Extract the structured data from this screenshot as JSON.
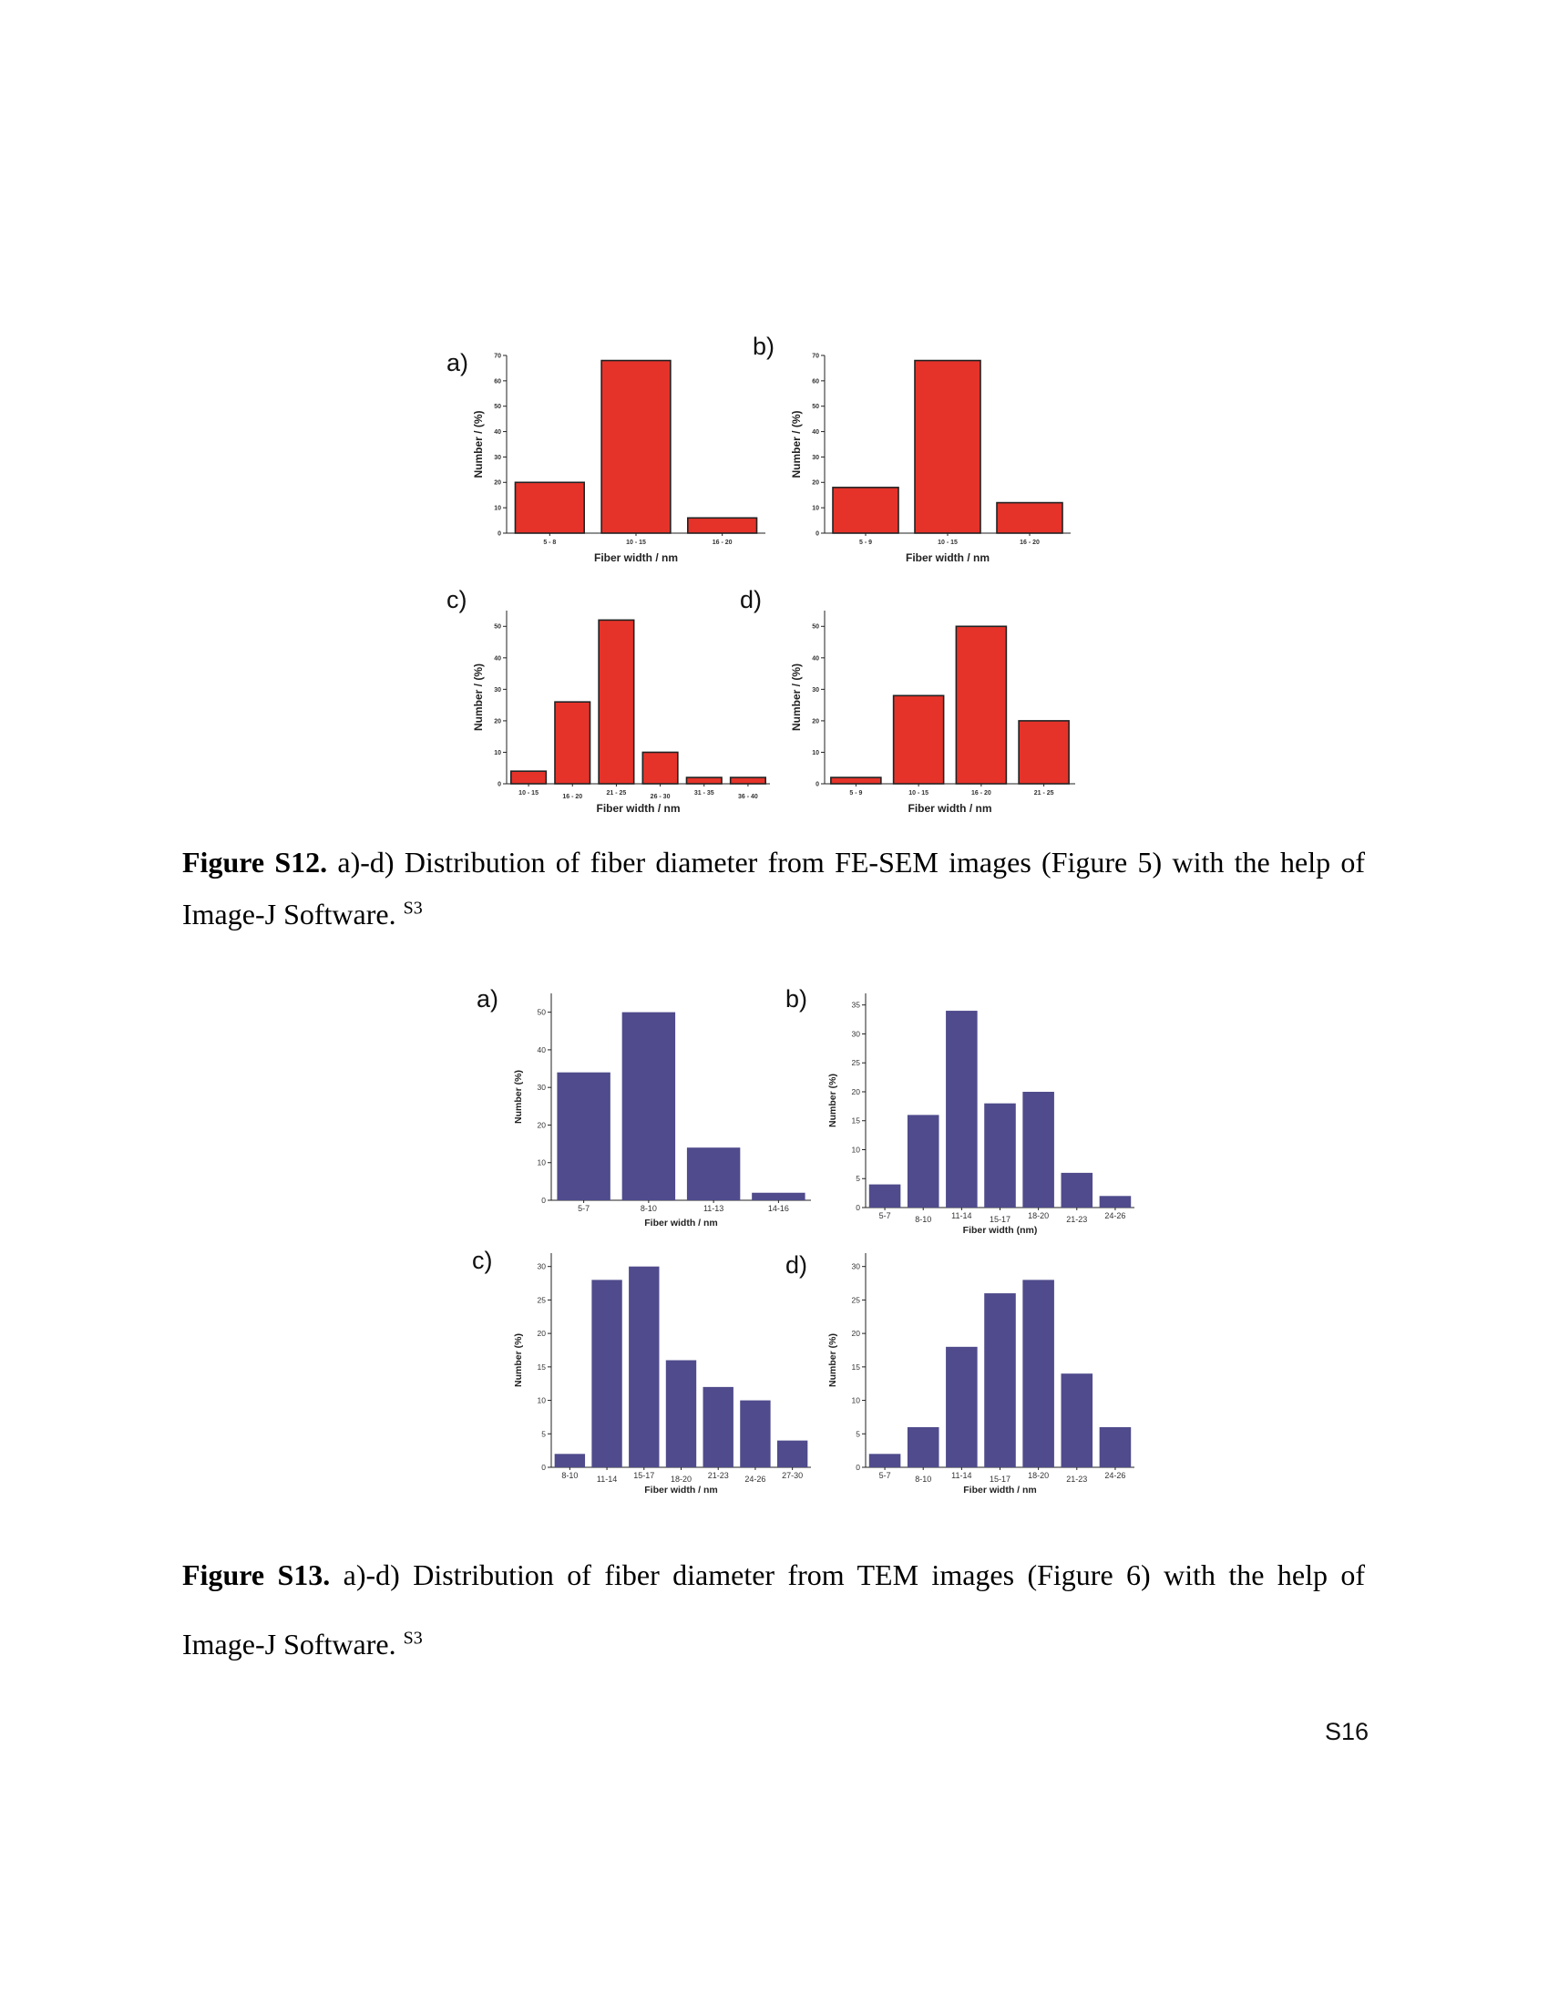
{
  "figure_s12": {
    "caption": {
      "label": "Figure S12.",
      "text": " a)-d) Distribution of fiber diameter from FE-SEM images (Figure 5) with the help of Image-J Software.",
      "superscript": "S3"
    }
  },
  "figure_s13": {
    "caption": {
      "label": "Figure S13.",
      "text": " a)-d) Distribution of fiber diameter from TEM images (Figure 6) with the help of Image-J Software.",
      "superscript": "S3"
    }
  },
  "page_number": "S16",
  "chart_data": [
    {
      "id": "s12a",
      "panel": "a)",
      "type": "bar",
      "color": "#e5332a",
      "categories": [
        "5 - 8",
        "10 - 15",
        "16 - 20"
      ],
      "values": [
        20,
        68,
        6
      ],
      "xlabel": "Fiber width  / nm",
      "ylabel": "Number / (%)",
      "ylim": [
        0,
        70
      ],
      "yticks": [
        0,
        10,
        20,
        30,
        40,
        50,
        60,
        70
      ],
      "grid": false
    },
    {
      "id": "s12b",
      "panel": "b)",
      "type": "bar",
      "color": "#e5332a",
      "categories": [
        "5 - 9",
        "10 - 15",
        "16 - 20"
      ],
      "values": [
        18,
        68,
        12
      ],
      "xlabel": "Fiber width  / nm",
      "ylabel": "Number / (%)",
      "ylim": [
        0,
        70
      ],
      "yticks": [
        0,
        10,
        20,
        30,
        40,
        50,
        60,
        70
      ],
      "grid": false
    },
    {
      "id": "s12c",
      "panel": "c)",
      "type": "bar",
      "color": "#e5332a",
      "categories": [
        "10 - 15",
        "16 - 20",
        "21 - 25",
        "26 - 30",
        "31 - 35",
        "36 - 40"
      ],
      "values": [
        4,
        26,
        52,
        10,
        2,
        2
      ],
      "xlabel": "Fiber width / nm",
      "ylabel": "Number / (%)",
      "ylim": [
        0,
        55
      ],
      "yticks": [
        0,
        10,
        20,
        30,
        40,
        50
      ],
      "grid": false
    },
    {
      "id": "s12d",
      "panel": "d)",
      "type": "bar",
      "color": "#e5332a",
      "categories": [
        "5 - 9",
        "10 - 15",
        "16 - 20",
        "21 - 25"
      ],
      "values": [
        2,
        28,
        50,
        20
      ],
      "xlabel": "Fiber width  / nm",
      "ylabel": "Number  / (%)",
      "ylim": [
        0,
        55
      ],
      "yticks": [
        0,
        10,
        20,
        30,
        40,
        50
      ],
      "grid": false
    },
    {
      "id": "s13a",
      "panel": "a)",
      "type": "bar",
      "color": "#4f4b8c",
      "categories": [
        "5-7",
        "8-10",
        "11-13",
        "14-16"
      ],
      "values": [
        34,
        50,
        14,
        2
      ],
      "xlabel": "Fiber width / nm",
      "ylabel": "Number (%)",
      "ylim": [
        0,
        55
      ],
      "yticks": [
        0,
        10,
        20,
        30,
        40,
        50
      ],
      "grid": false
    },
    {
      "id": "s13b",
      "panel": "b)",
      "type": "bar",
      "color": "#4f4b8c",
      "categories": [
        "5-7",
        "8-10",
        "11-14",
        "15-17",
        "18-20",
        "21-23",
        "24-26"
      ],
      "values": [
        4,
        16,
        34,
        18,
        20,
        6,
        2
      ],
      "xlabel": "Fiber width (nm)",
      "ylabel": "Number (%)",
      "ylim": [
        0,
        37
      ],
      "yticks": [
        0,
        5,
        10,
        15,
        20,
        25,
        30,
        35
      ],
      "grid": false
    },
    {
      "id": "s13c",
      "panel": "c)",
      "type": "bar",
      "color": "#4f4b8c",
      "categories": [
        "8-10",
        "11-14",
        "15-17",
        "18-20",
        "21-23",
        "24-26",
        "27-30"
      ],
      "values": [
        2,
        28,
        30,
        16,
        12,
        10,
        4
      ],
      "xlabel": "Fiber width / nm",
      "ylabel": "Number (%)",
      "ylim": [
        0,
        32
      ],
      "yticks": [
        0,
        5,
        10,
        15,
        20,
        25,
        30
      ],
      "grid": false
    },
    {
      "id": "s13d",
      "panel": "d)",
      "type": "bar",
      "color": "#4f4b8c",
      "categories": [
        "5-7",
        "8-10",
        "11-14",
        "15-17",
        "18-20",
        "21-23",
        "24-26"
      ],
      "values": [
        2,
        6,
        18,
        26,
        28,
        14,
        6
      ],
      "xlabel": "Fiber width / nm",
      "ylabel": "Number (%)",
      "ylim": [
        0,
        32
      ],
      "yticks": [
        0,
        5,
        10,
        15,
        20,
        25,
        30
      ],
      "grid": false
    }
  ]
}
